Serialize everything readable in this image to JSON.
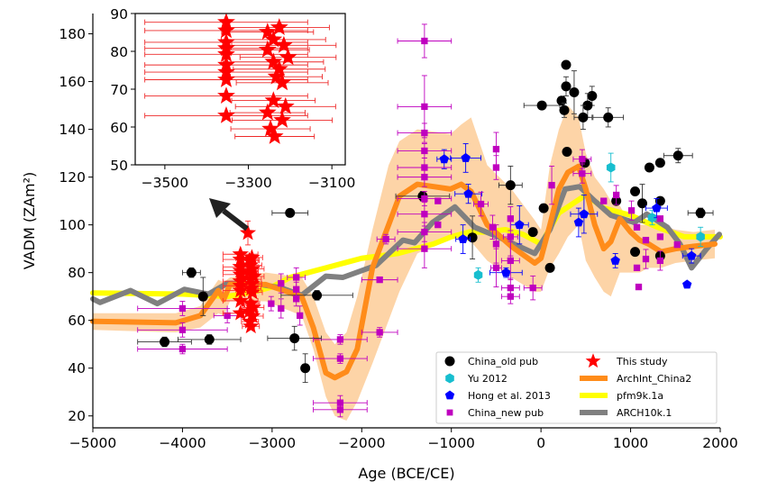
{
  "chart_data": {
    "type": "scatter",
    "xlabel": "Age (BCE/CE)",
    "ylabel": "VADM (ZAm²)",
    "xlim": [
      -5000,
      2000
    ],
    "ylim": [
      15,
      188.5
    ],
    "xticks": [
      -5000,
      -4000,
      -3000,
      -2000,
      -1000,
      0,
      1000,
      2000
    ],
    "xtick_labels": [
      "−5000",
      "−4000",
      "−3000",
      "−2000",
      "−1000",
      "0",
      "1000",
      "2000"
    ],
    "yticks": [
      20,
      40,
      60,
      80,
      100,
      120,
      140,
      160,
      180
    ],
    "ytick_labels": [
      "20",
      "40",
      "60",
      "80",
      "100",
      "120",
      "140",
      "160",
      "180"
    ],
    "grid": false,
    "legend_position": "bottom-right",
    "legend": [
      {
        "label": "China_old pub",
        "marker": "circle",
        "color": "#000000"
      },
      {
        "label": "Yu 2012",
        "marker": "hexagon",
        "color": "#17becf"
      },
      {
        "label": "Hong et al. 2013",
        "marker": "pentagon",
        "color": "#0000ff"
      },
      {
        "label": "China_new pub",
        "marker": "square",
        "color": "#bf00bf"
      },
      {
        "label": "This study",
        "marker": "star",
        "color": "#ff0000"
      },
      {
        "label": "ArchInt_China2",
        "marker": "line",
        "color": "#ff8c1a"
      },
      {
        "label": "pfm9k.1a",
        "marker": "line",
        "color": "#ffff00"
      },
      {
        "label": "ARCH10k.1",
        "marker": "line",
        "color": "#808080"
      }
    ],
    "points_format": [
      "x",
      "y",
      "xerr",
      "yerr"
    ],
    "points": {
      "China_old pub": [
        [
          -4200,
          51,
          300,
          2
        ],
        [
          -3900,
          80,
          100,
          2
        ],
        [
          -3770,
          70,
          0,
          8
        ],
        [
          -3700,
          52,
          350,
          2
        ],
        [
          -2800,
          105,
          200,
          1
        ],
        [
          -2750,
          52.5,
          300,
          5
        ],
        [
          -2630,
          40,
          0,
          6
        ],
        [
          -2500,
          70.5,
          400,
          2
        ],
        [
          -1320,
          112,
          300,
          2
        ],
        [
          -765,
          94.7,
          0,
          9
        ],
        [
          -340,
          116.6,
          130,
          8
        ],
        [
          -90,
          97,
          0,
          0
        ],
        [
          30,
          107,
          0,
          0
        ],
        [
          100,
          82,
          0,
          0
        ],
        [
          10,
          150,
          200,
          1
        ],
        [
          280,
          167,
          0,
          0
        ],
        [
          280,
          158,
          0,
          4
        ],
        [
          370,
          155.5,
          0,
          9
        ],
        [
          570,
          154,
          0,
          4
        ],
        [
          230,
          152,
          0,
          0
        ],
        [
          260,
          148,
          0,
          3
        ],
        [
          520,
          150,
          0,
          5
        ],
        [
          470,
          145,
          100,
          5
        ],
        [
          750,
          145,
          170,
          4
        ],
        [
          290,
          130.6,
          0,
          0
        ],
        [
          490,
          126,
          0,
          0
        ],
        [
          1210,
          124,
          0,
          0
        ],
        [
          1330,
          126,
          0,
          0
        ],
        [
          1530,
          129,
          160,
          3
        ],
        [
          1780,
          105,
          140,
          2
        ],
        [
          1050,
          114,
          0,
          0
        ],
        [
          840,
          110,
          0,
          0
        ],
        [
          1130,
          109,
          0,
          8
        ],
        [
          1330,
          110,
          0,
          0
        ],
        [
          1050,
          88.7,
          0,
          0
        ],
        [
          1330,
          87,
          0,
          0
        ]
      ],
      "Yu 2012": [
        [
          780,
          124,
          0,
          6
        ],
        [
          1780,
          95,
          0,
          4
        ],
        [
          -700,
          79,
          0,
          3
        ],
        [
          1240,
          103,
          0,
          3
        ]
      ],
      "Hong et al. 2013": [
        [
          -1080,
          127.5,
          80,
          4
        ],
        [
          -840,
          128,
          170,
          6
        ],
        [
          -810,
          113,
          150,
          4
        ],
        [
          -870,
          94,
          80,
          6
        ],
        [
          -240,
          100,
          100,
          8
        ],
        [
          -390,
          80,
          180,
          2
        ],
        [
          480,
          104.5,
          150,
          8
        ],
        [
          420,
          101,
          0,
          6
        ],
        [
          830,
          85,
          0,
          3
        ],
        [
          1290,
          107,
          120,
          4
        ],
        [
          1680,
          87,
          100,
          3
        ],
        [
          1630,
          75,
          0,
          0
        ]
      ],
      "China_new pub": [
        [
          -4000,
          65,
          500,
          3
        ],
        [
          -4000,
          56,
          500,
          3
        ],
        [
          -4000,
          48,
          500,
          2
        ],
        [
          -3500,
          62,
          150,
          3
        ],
        [
          -2900,
          75.5,
          0,
          4
        ],
        [
          -2900,
          65,
          0,
          4
        ],
        [
          -3010,
          67,
          0,
          3
        ],
        [
          -2730,
          78,
          100,
          4
        ],
        [
          -2730,
          73,
          0,
          3
        ],
        [
          -2730,
          69,
          0,
          3
        ],
        [
          -2690,
          62,
          0,
          4
        ],
        [
          -2240,
          52,
          300,
          2
        ],
        [
          -2240,
          44,
          300,
          2
        ],
        [
          -2240,
          25.5,
          300,
          3
        ],
        [
          -2240,
          22.6,
          300,
          3
        ],
        [
          -1300,
          177,
          300,
          7
        ],
        [
          -1300,
          149.5,
          300,
          13
        ],
        [
          -1300,
          138.5,
          300,
          4
        ],
        [
          -1300,
          131,
          300,
          3
        ],
        [
          -1300,
          124,
          300,
          4
        ],
        [
          -1300,
          120,
          300,
          4
        ],
        [
          -1300,
          111,
          300,
          3
        ],
        [
          -1300,
          104.5,
          300,
          5
        ],
        [
          -1300,
          97,
          300,
          4
        ],
        [
          -1300,
          90,
          300,
          8
        ],
        [
          -1150,
          110,
          0,
          0
        ],
        [
          -1150,
          100,
          0,
          0
        ],
        [
          -1730,
          94,
          100,
          2
        ],
        [
          -1800,
          77,
          200,
          0
        ],
        [
          -1800,
          55,
          200,
          2
        ],
        [
          -500,
          131.7,
          0,
          7
        ],
        [
          -500,
          124,
          0,
          5
        ],
        [
          -670,
          108.7,
          80,
          5
        ],
        [
          -540,
          99,
          0,
          5
        ],
        [
          -500,
          92,
          0,
          8
        ],
        [
          -500,
          82,
          60,
          8
        ],
        [
          -340,
          102.6,
          0,
          5
        ],
        [
          -340,
          95,
          80,
          8
        ],
        [
          -340,
          85,
          100,
          8
        ],
        [
          -340,
          73.6,
          100,
          4
        ],
        [
          -340,
          70,
          100,
          3
        ],
        [
          -90,
          73.6,
          100,
          5
        ],
        [
          460,
          127.5,
          100,
          4
        ],
        [
          460,
          121.5,
          100,
          4
        ],
        [
          120,
          116.6,
          0,
          8
        ],
        [
          700,
          110,
          0,
          0
        ],
        [
          840,
          112.5,
          0,
          4
        ],
        [
          1010,
          106,
          0,
          4
        ],
        [
          1070,
          99,
          0,
          0
        ],
        [
          1170,
          93.6,
          0,
          0
        ],
        [
          1330,
          102.6,
          0,
          0
        ],
        [
          1330,
          95,
          0,
          0
        ],
        [
          1170,
          85.7,
          0,
          4
        ],
        [
          1330,
          85,
          0,
          4
        ],
        [
          1520,
          91.7,
          0,
          0
        ],
        [
          1070,
          82,
          0,
          0
        ],
        [
          1090,
          74,
          0,
          0
        ]
      ],
      "This study": [
        [
          -3270,
          96.6,
          0,
          5
        ],
        [
          -3353,
          87.7,
          195,
          0
        ],
        [
          -3353,
          85.5,
          195,
          0
        ],
        [
          -3353,
          82.4,
          195,
          0
        ],
        [
          -3353,
          80.8,
          195,
          0
        ],
        [
          -3353,
          79.2,
          195,
          0
        ],
        [
          -3353,
          76.4,
          195,
          0
        ],
        [
          -3353,
          74.5,
          195,
          0
        ],
        [
          -3353,
          72.5,
          195,
          0
        ],
        [
          -3353,
          68.2,
          195,
          0
        ],
        [
          -3353,
          63.0,
          195,
          0
        ],
        [
          -3226,
          86.3,
          120,
          1
        ],
        [
          -3254,
          85.1,
          110,
          0
        ],
        [
          -3240,
          83.1,
          125,
          0
        ],
        [
          -3215,
          81.6,
          125,
          0
        ],
        [
          -3254,
          80.4,
          100,
          0
        ],
        [
          -3205,
          78.4,
          115,
          0
        ],
        [
          -3240,
          77.2,
          120,
          0
        ],
        [
          -3226,
          75.3,
          110,
          0
        ],
        [
          -3233,
          73.3,
          110,
          0
        ],
        [
          -3219,
          71.7,
          110,
          0
        ],
        [
          -3240,
          67.0,
          100,
          0
        ],
        [
          -3211,
          65.4,
          120,
          0
        ],
        [
          -3254,
          63.8,
          90,
          0
        ],
        [
          -3219,
          61.8,
          120,
          0
        ],
        [
          -3247,
          59.5,
          95,
          0
        ],
        [
          -3237,
          57.5,
          95,
          0
        ]
      ]
    },
    "curves": {
      "ArchInt_China2": {
        "x": [
          -5000,
          -4075,
          -3800,
          -3600,
          -3540,
          -3470,
          -3070,
          -2670,
          -2540,
          -2400,
          -2300,
          -2170,
          -2050,
          -1880,
          -1700,
          -1580,
          -1380,
          -1010,
          -890,
          -780,
          -600,
          -330,
          -70,
          0,
          100,
          200,
          300,
          420,
          500,
          600,
          700,
          780,
          880,
          1000,
          1100,
          1200,
          1340,
          1500,
          1700,
          1940
        ],
        "y": [
          59.6,
          59,
          62,
          72.5,
          68.7,
          75,
          75,
          70,
          57,
          38,
          36,
          38.5,
          48,
          82,
          100,
          112,
          117,
          115,
          117,
          114,
          100,
          91,
          84,
          86,
          100,
          115,
          122,
          124.5,
          115,
          100,
          90,
          93,
          102.6,
          97,
          93.6,
          92,
          88.7,
          90,
          91,
          92
        ],
        "band_lower": [
          56,
          55,
          57,
          63,
          62,
          68,
          68,
          62,
          48,
          28,
          20,
          18,
          26,
          42,
          60,
          72,
          88,
          95,
          94,
          93,
          85,
          78,
          72,
          72,
          82,
          88,
          95,
          100,
          85,
          78,
          72,
          70,
          80,
          80,
          80,
          82,
          82,
          84,
          85,
          86
        ],
        "band_upper": [
          63,
          63,
          66,
          77,
          76,
          78,
          80,
          78,
          70,
          55,
          50,
          55,
          70,
          98,
          125,
          135,
          140,
          138,
          142,
          145,
          125,
          115,
          102,
          98,
          125,
          140,
          150,
          145,
          130,
          120,
          115,
          110,
          108,
          100,
          100,
          100,
          100,
          98,
          97,
          98
        ]
      },
      "pfm9k.1a": {
        "x": [
          -5000,
          -4000,
          -3500,
          -3200,
          -3000,
          -2800,
          -2600,
          -2400,
          -2200,
          -2000,
          -1800,
          -1600,
          -1400,
          -1200,
          -1000,
          -800,
          -600,
          -400,
          -200,
          0,
          200,
          500,
          700,
          1000,
          1300,
          1600,
          1900,
          2000
        ],
        "y": [
          71.5,
          71,
          70,
          72,
          74,
          78,
          80,
          82,
          84,
          86,
          87,
          88,
          90,
          92,
          95,
          97,
          97,
          98,
          96,
          92,
          105,
          112.5,
          107,
          104,
          99,
          95,
          95,
          95
        ]
      },
      "ARCH10k.1": {
        "x": [
          -5000,
          -4920,
          -4580,
          -4280,
          -3980,
          -3710,
          -3500,
          -3200,
          -2900,
          -2670,
          -2400,
          -2210,
          -1840,
          -1540,
          -1410,
          -1210,
          -960,
          -740,
          -480,
          -70,
          100,
          270,
          430,
          600,
          780,
          1040,
          1180,
          1410,
          1550,
          1680,
          1850,
          1990
        ],
        "y": [
          69,
          67.5,
          72.5,
          67,
          73,
          71,
          75.5,
          75.5,
          73.6,
          70.5,
          78.5,
          78,
          83,
          93.6,
          92.5,
          101,
          107.5,
          99,
          95,
          88,
          98,
          115,
          116,
          110,
          104,
          101,
          104.5,
          99,
          92,
          82,
          90,
          96
        ]
      }
    },
    "inset": {
      "xlim": [
        -3571,
        -3068
      ],
      "ylim": [
        50,
        90
      ],
      "xticks": [
        -3500,
        -3300,
        -3100
      ],
      "xtick_labels": [
        "−3500",
        "−3300",
        "−3100"
      ],
      "yticks": [
        50,
        60,
        70,
        80,
        90
      ],
      "ytick_labels": [
        "50",
        "60",
        "70",
        "80",
        "90"
      ],
      "series": "This study"
    }
  }
}
